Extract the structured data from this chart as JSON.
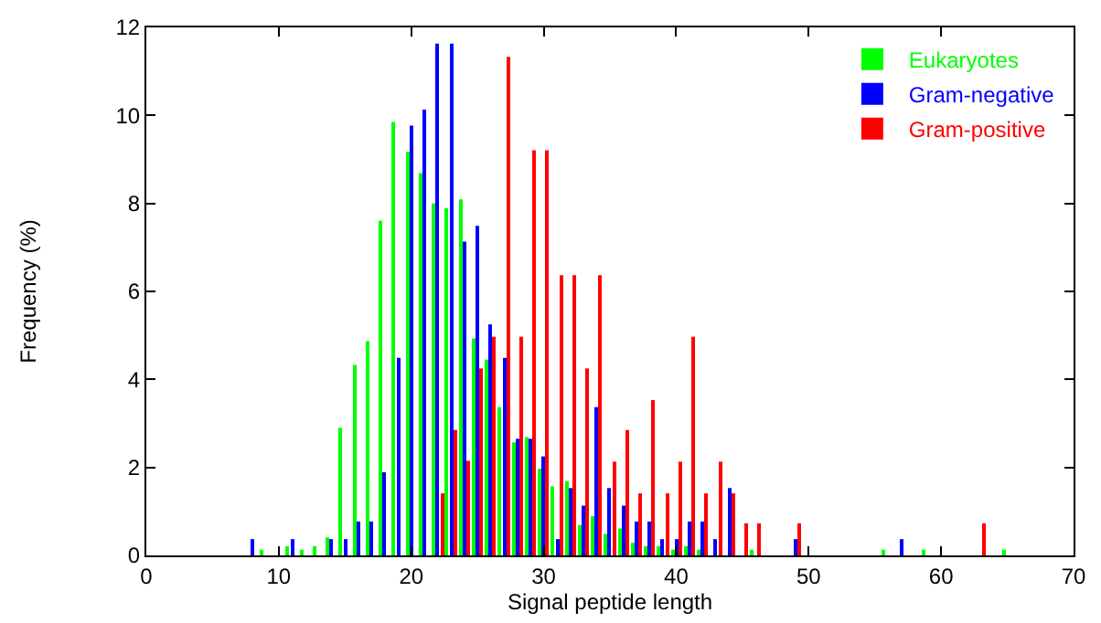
{
  "chart_data": {
    "type": "bar",
    "xlabel": "Signal peptide length",
    "ylabel": "Frequency (%)",
    "xlim": [
      0,
      70
    ],
    "xticks": [
      0,
      10,
      20,
      30,
      40,
      50,
      60,
      70
    ],
    "ylim": [
      0,
      12
    ],
    "yticks": [
      0,
      2,
      4,
      6,
      8,
      10,
      12
    ],
    "legend": "top right",
    "series": [
      {
        "name": "Eukaryotes",
        "color": "#00ff00",
        "x": [
          8.7,
          10.7,
          11.7,
          12.7,
          13.7,
          14.7,
          15.7,
          16.7,
          17.7,
          18.7,
          19.7,
          20.7,
          21.7,
          22.7,
          23.7,
          24.7,
          25.7,
          26.7,
          27.7,
          28.7,
          29.7,
          30.7,
          31.7,
          32.7,
          33.7,
          34.7,
          35.7,
          36.7,
          37.7,
          38.7,
          39.7,
          40.7,
          41.7,
          45.7,
          55.7,
          58.7,
          64.7
        ],
        "values": [
          0.13,
          0.21,
          0.13,
          0.21,
          0.41,
          2.9,
          4.33,
          4.87,
          7.61,
          9.85,
          9.17,
          8.69,
          8.0,
          7.89,
          8.09,
          4.93,
          4.45,
          3.37,
          2.57,
          2.69,
          1.97,
          1.57,
          1.69,
          0.69,
          0.89,
          0.49,
          0.61,
          0.29,
          0.21,
          0.21,
          0.13,
          0.21,
          0.13,
          0.13,
          0.13,
          0.13,
          0.13
        ]
      },
      {
        "name": "Gram-negative",
        "color": "#0000ff",
        "x": [
          8,
          11,
          14,
          15,
          16,
          17,
          18,
          19,
          20,
          21,
          22,
          23,
          24,
          25,
          26,
          27,
          28,
          29,
          30,
          31,
          32,
          33,
          34,
          35,
          36,
          37,
          38,
          39,
          40,
          41,
          42,
          43,
          44,
          49,
          57
        ],
        "values": [
          0.37,
          0.37,
          0.37,
          0.37,
          0.77,
          0.77,
          1.89,
          4.49,
          9.77,
          10.13,
          11.63,
          11.63,
          7.13,
          7.49,
          5.25,
          4.49,
          2.65,
          2.65,
          2.25,
          0.37,
          1.53,
          1.13,
          3.37,
          1.53,
          1.13,
          0.77,
          0.77,
          0.37,
          0.37,
          0.77,
          0.77,
          0.37,
          1.53,
          0.37,
          0.37
        ]
      },
      {
        "name": "Gram-positive",
        "color": "#ff0000",
        "x": [
          22.3,
          23.3,
          24.3,
          25.3,
          26.3,
          27.3,
          28.3,
          29.3,
          30.3,
          31.3,
          32.3,
          33.3,
          34.3,
          35.3,
          36.3,
          37.3,
          38.3,
          39.3,
          40.3,
          41.3,
          42.3,
          43.3,
          44.3,
          45.3,
          46.3,
          49.3,
          63.3
        ],
        "values": [
          1.41,
          2.85,
          2.15,
          4.25,
          4.97,
          11.33,
          4.97,
          9.21,
          9.21,
          6.37,
          6.37,
          4.25,
          6.37,
          2.13,
          2.85,
          1.41,
          3.53,
          1.41,
          2.13,
          4.97,
          1.41,
          2.13,
          1.41,
          0.73,
          0.73,
          0.73,
          0.73
        ]
      }
    ]
  }
}
